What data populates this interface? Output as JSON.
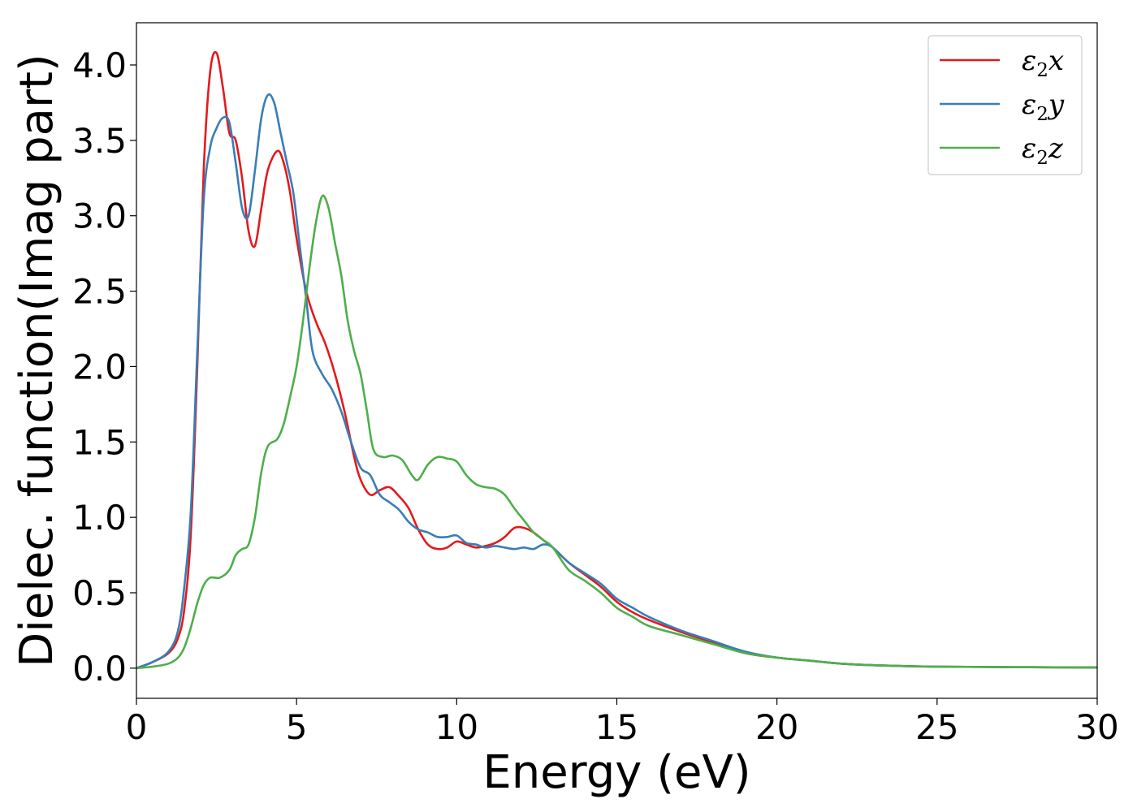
{
  "chart_data": {
    "type": "line",
    "xlabel": "Energy (eV)",
    "ylabel": "Dielec. function(Imag part)",
    "xlim": [
      0,
      30
    ],
    "ylim": [
      -0.2,
      4.28
    ],
    "xticks": [
      0,
      5,
      10,
      15,
      20,
      25,
      30
    ],
    "yticks": [
      0.0,
      0.5,
      1.0,
      1.5,
      2.0,
      2.5,
      3.0,
      3.5,
      4.0
    ],
    "xtick_labels": [
      "0",
      "5",
      "10",
      "15",
      "20",
      "25",
      "30"
    ],
    "ytick_labels": [
      "0.0",
      "0.5",
      "1.0",
      "1.5",
      "2.0",
      "2.5",
      "3.0",
      "3.5",
      "4.0"
    ],
    "grid": false,
    "legend_position": "top-right",
    "series": [
      {
        "name": "ε₂x",
        "legend_base": "ε",
        "legend_sub": "2",
        "legend_suffix": "x",
        "color": "#e41a1c",
        "points": [
          [
            0,
            0
          ],
          [
            0.5,
            0.04
          ],
          [
            1.0,
            0.1
          ],
          [
            1.3,
            0.2
          ],
          [
            1.5,
            0.4
          ],
          [
            1.7,
            0.9
          ],
          [
            1.9,
            2.0
          ],
          [
            2.1,
            3.3
          ],
          [
            2.3,
            3.95
          ],
          [
            2.5,
            4.08
          ],
          [
            2.7,
            3.85
          ],
          [
            2.9,
            3.55
          ],
          [
            3.1,
            3.5
          ],
          [
            3.3,
            3.25
          ],
          [
            3.5,
            2.9
          ],
          [
            3.7,
            2.8
          ],
          [
            3.9,
            3.05
          ],
          [
            4.1,
            3.3
          ],
          [
            4.4,
            3.43
          ],
          [
            4.6,
            3.35
          ],
          [
            4.8,
            3.15
          ],
          [
            5.0,
            2.85
          ],
          [
            5.3,
            2.5
          ],
          [
            5.6,
            2.3
          ],
          [
            5.9,
            2.15
          ],
          [
            6.2,
            1.95
          ],
          [
            6.5,
            1.7
          ],
          [
            6.8,
            1.4
          ],
          [
            7.0,
            1.25
          ],
          [
            7.3,
            1.15
          ],
          [
            7.6,
            1.18
          ],
          [
            7.9,
            1.2
          ],
          [
            8.2,
            1.14
          ],
          [
            8.5,
            1.06
          ],
          [
            8.8,
            0.92
          ],
          [
            9.1,
            0.82
          ],
          [
            9.4,
            0.79
          ],
          [
            9.7,
            0.8
          ],
          [
            10.0,
            0.84
          ],
          [
            10.3,
            0.82
          ],
          [
            10.6,
            0.8
          ],
          [
            10.9,
            0.81
          ],
          [
            11.2,
            0.83
          ],
          [
            11.5,
            0.87
          ],
          [
            11.8,
            0.93
          ],
          [
            12.1,
            0.93
          ],
          [
            12.4,
            0.9
          ],
          [
            12.7,
            0.85
          ],
          [
            13.0,
            0.8
          ],
          [
            13.5,
            0.7
          ],
          [
            14.0,
            0.62
          ],
          [
            14.5,
            0.54
          ],
          [
            15.0,
            0.44
          ],
          [
            15.5,
            0.37
          ],
          [
            16.0,
            0.32
          ],
          [
            17.0,
            0.24
          ],
          [
            18.0,
            0.17
          ],
          [
            19.0,
            0.1
          ],
          [
            20.0,
            0.07
          ],
          [
            21.0,
            0.05
          ],
          [
            22.0,
            0.03
          ],
          [
            23.0,
            0.02
          ],
          [
            25.0,
            0.01
          ],
          [
            30.0,
            0.004
          ]
        ]
      },
      {
        "name": "ε₂y",
        "legend_base": "ε",
        "legend_sub": "2",
        "legend_suffix": "y",
        "color": "#377eb8",
        "points": [
          [
            0,
            0
          ],
          [
            0.5,
            0.04
          ],
          [
            1.0,
            0.11
          ],
          [
            1.3,
            0.25
          ],
          [
            1.5,
            0.55
          ],
          [
            1.7,
            1.05
          ],
          [
            1.9,
            2.1
          ],
          [
            2.1,
            3.1
          ],
          [
            2.3,
            3.45
          ],
          [
            2.5,
            3.58
          ],
          [
            2.7,
            3.65
          ],
          [
            2.9,
            3.62
          ],
          [
            3.1,
            3.35
          ],
          [
            3.3,
            3.05
          ],
          [
            3.5,
            3.0
          ],
          [
            3.7,
            3.3
          ],
          [
            3.9,
            3.65
          ],
          [
            4.1,
            3.8
          ],
          [
            4.3,
            3.75
          ],
          [
            4.5,
            3.55
          ],
          [
            4.7,
            3.35
          ],
          [
            4.9,
            3.15
          ],
          [
            5.1,
            2.8
          ],
          [
            5.3,
            2.45
          ],
          [
            5.5,
            2.1
          ],
          [
            5.8,
            1.95
          ],
          [
            6.1,
            1.85
          ],
          [
            6.4,
            1.7
          ],
          [
            6.7,
            1.5
          ],
          [
            7.0,
            1.33
          ],
          [
            7.3,
            1.28
          ],
          [
            7.6,
            1.15
          ],
          [
            7.9,
            1.1
          ],
          [
            8.2,
            1.05
          ],
          [
            8.5,
            0.97
          ],
          [
            8.8,
            0.92
          ],
          [
            9.1,
            0.9
          ],
          [
            9.4,
            0.87
          ],
          [
            9.7,
            0.87
          ],
          [
            10.0,
            0.88
          ],
          [
            10.3,
            0.83
          ],
          [
            10.6,
            0.82
          ],
          [
            10.9,
            0.8
          ],
          [
            11.2,
            0.81
          ],
          [
            11.5,
            0.8
          ],
          [
            11.8,
            0.79
          ],
          [
            12.1,
            0.8
          ],
          [
            12.4,
            0.79
          ],
          [
            12.7,
            0.82
          ],
          [
            13.0,
            0.8
          ],
          [
            13.5,
            0.7
          ],
          [
            14.0,
            0.63
          ],
          [
            14.5,
            0.56
          ],
          [
            15.0,
            0.46
          ],
          [
            15.5,
            0.4
          ],
          [
            16.0,
            0.34
          ],
          [
            17.0,
            0.25
          ],
          [
            18.0,
            0.18
          ],
          [
            19.0,
            0.11
          ],
          [
            20.0,
            0.07
          ],
          [
            21.0,
            0.05
          ],
          [
            22.0,
            0.03
          ],
          [
            23.0,
            0.02
          ],
          [
            25.0,
            0.01
          ],
          [
            30.0,
            0.004
          ]
        ]
      },
      {
        "name": "ε₂z",
        "legend_base": "ε",
        "legend_sub": "2",
        "legend_suffix": "z",
        "color": "#4daf4a",
        "points": [
          [
            0,
            0
          ],
          [
            0.5,
            0.01
          ],
          [
            1.0,
            0.03
          ],
          [
            1.3,
            0.07
          ],
          [
            1.5,
            0.14
          ],
          [
            1.7,
            0.27
          ],
          [
            1.9,
            0.43
          ],
          [
            2.1,
            0.55
          ],
          [
            2.3,
            0.6
          ],
          [
            2.6,
            0.6
          ],
          [
            2.9,
            0.65
          ],
          [
            3.1,
            0.75
          ],
          [
            3.3,
            0.79
          ],
          [
            3.5,
            0.82
          ],
          [
            3.7,
            1.0
          ],
          [
            3.9,
            1.3
          ],
          [
            4.1,
            1.47
          ],
          [
            4.4,
            1.52
          ],
          [
            4.6,
            1.62
          ],
          [
            4.8,
            1.8
          ],
          [
            5.0,
            2.0
          ],
          [
            5.2,
            2.3
          ],
          [
            5.4,
            2.65
          ],
          [
            5.6,
            2.95
          ],
          [
            5.8,
            3.13
          ],
          [
            6.0,
            3.05
          ],
          [
            6.2,
            2.82
          ],
          [
            6.4,
            2.6
          ],
          [
            6.6,
            2.3
          ],
          [
            6.8,
            2.1
          ],
          [
            7.0,
            1.95
          ],
          [
            7.2,
            1.7
          ],
          [
            7.4,
            1.45
          ],
          [
            7.7,
            1.4
          ],
          [
            8.0,
            1.41
          ],
          [
            8.3,
            1.38
          ],
          [
            8.6,
            1.28
          ],
          [
            8.8,
            1.25
          ],
          [
            9.1,
            1.35
          ],
          [
            9.4,
            1.4
          ],
          [
            9.7,
            1.39
          ],
          [
            10.0,
            1.37
          ],
          [
            10.3,
            1.28
          ],
          [
            10.6,
            1.22
          ],
          [
            10.9,
            1.2
          ],
          [
            11.2,
            1.19
          ],
          [
            11.5,
            1.15
          ],
          [
            11.8,
            1.06
          ],
          [
            12.1,
            0.98
          ],
          [
            12.4,
            0.9
          ],
          [
            12.7,
            0.85
          ],
          [
            13.0,
            0.8
          ],
          [
            13.5,
            0.65
          ],
          [
            14.0,
            0.58
          ],
          [
            14.5,
            0.5
          ],
          [
            15.0,
            0.4
          ],
          [
            15.5,
            0.34
          ],
          [
            16.0,
            0.28
          ],
          [
            17.0,
            0.22
          ],
          [
            18.0,
            0.16
          ],
          [
            19.0,
            0.1
          ],
          [
            20.0,
            0.07
          ],
          [
            21.0,
            0.05
          ],
          [
            22.0,
            0.03
          ],
          [
            23.0,
            0.02
          ],
          [
            25.0,
            0.01
          ],
          [
            30.0,
            0.004
          ]
        ]
      }
    ]
  }
}
